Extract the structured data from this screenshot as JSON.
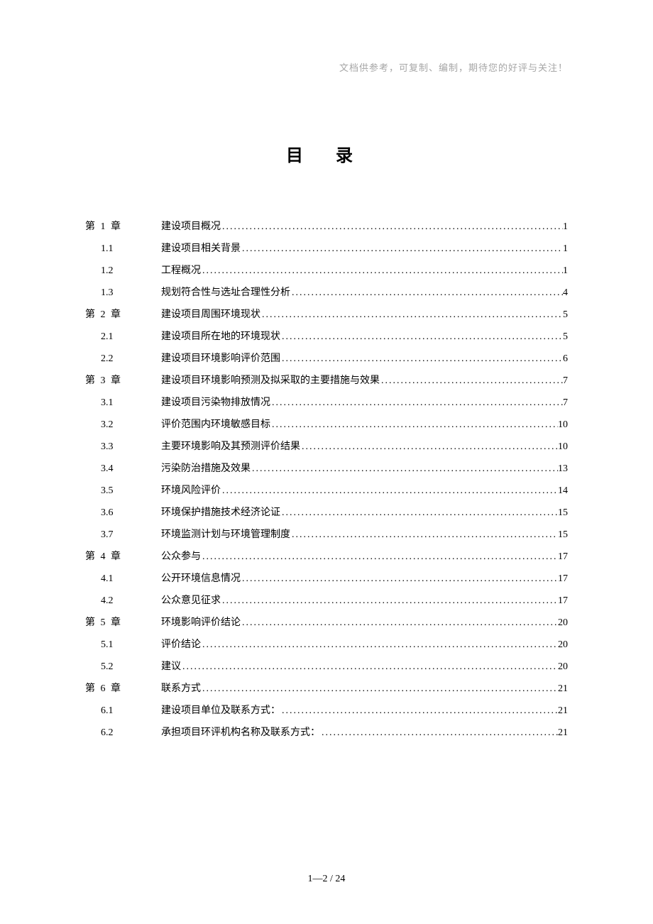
{
  "header_note": "文档供参考，可复制、编制，期待您的好评与关注！",
  "title": "目 录",
  "page_number": "1—2  / 24",
  "entries": [
    {
      "number": "第 1 章",
      "text": "建设项目概况",
      "page": "1",
      "level": "chapter"
    },
    {
      "number": "1.1",
      "text": "建设项目相关背景",
      "page": "1",
      "level": "section"
    },
    {
      "number": "1.2",
      "text": "工程概况",
      "page": "1",
      "level": "section"
    },
    {
      "number": "1.3",
      "text": "规划符合性与选址合理性分析",
      "page": "4",
      "level": "section"
    },
    {
      "number": "第 2 章",
      "text": "建设项目周围环境现状",
      "page": "5",
      "level": "chapter"
    },
    {
      "number": "2.1",
      "text": "建设项目所在地的环境现状",
      "page": "5",
      "level": "section"
    },
    {
      "number": "2.2",
      "text": "建设项目环境影响评价范围",
      "page": "6",
      "level": "section"
    },
    {
      "number": "第 3 章",
      "text": "建设项目环境影响预测及拟采取的主要措施与效果",
      "page": "7",
      "level": "chapter"
    },
    {
      "number": "3.1",
      "text": "建设项目污染物排放情况",
      "page": "7",
      "level": "section"
    },
    {
      "number": "3.2",
      "text": "评价范围内环境敏感目标",
      "page": "10",
      "level": "section"
    },
    {
      "number": "3.3",
      "text": "主要环境影响及其预测评价结果",
      "page": "10",
      "level": "section"
    },
    {
      "number": "3.4",
      "text": "污染防治措施及效果",
      "page": "13",
      "level": "section"
    },
    {
      "number": "3.5",
      "text": "环境风险评价",
      "page": "14",
      "level": "section"
    },
    {
      "number": "3.6",
      "text": "环境保护措施技术经济论证",
      "page": "15",
      "level": "section"
    },
    {
      "number": "3.7",
      "text": "环境监测计划与环境管理制度",
      "page": "15",
      "level": "section"
    },
    {
      "number": "第 4 章",
      "text": "公众参与",
      "page": "17",
      "level": "chapter"
    },
    {
      "number": "4.1",
      "text": "公开环境信息情况",
      "page": "17",
      "level": "section"
    },
    {
      "number": "4.2",
      "text": "公众意见征求",
      "page": "17",
      "level": "section"
    },
    {
      "number": "第 5 章",
      "text": "环境影响评价结论",
      "page": "20",
      "level": "chapter"
    },
    {
      "number": "5.1",
      "text": "评价结论",
      "page": "20",
      "level": "section"
    },
    {
      "number": "5.2",
      "text": "建议",
      "page": "20",
      "level": "section"
    },
    {
      "number": "第 6 章",
      "text": "联系方式",
      "page": "21",
      "level": "chapter"
    },
    {
      "number": "6.1",
      "text": "建设项目单位及联系方式：",
      "page": "21",
      "level": "section"
    },
    {
      "number": "6.2",
      "text": "承担项目环评机构名称及联系方式：",
      "page": "21",
      "level": "section"
    }
  ]
}
